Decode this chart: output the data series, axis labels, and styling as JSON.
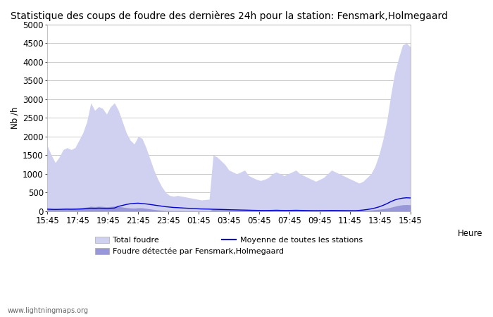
{
  "title": "Statistique des coups de foudre des dernières 24h pour la station: Fensmark,Holmegaard",
  "xlabel": "Heure",
  "ylabel": "Nb /h",
  "ylim": [
    0,
    5000
  ],
  "yticks": [
    0,
    500,
    1000,
    1500,
    2000,
    2500,
    3000,
    3500,
    4000,
    4500,
    5000
  ],
  "xtick_labels": [
    "15:45",
    "17:45",
    "19:45",
    "21:45",
    "23:45",
    "01:45",
    "03:45",
    "05:45",
    "07:45",
    "09:45",
    "11:45",
    "13:45",
    "15:45"
  ],
  "watermark": "www.lightningmaps.org",
  "legend": [
    {
      "label": "Total foudre",
      "color": "#c8c8f0",
      "type": "fill"
    },
    {
      "label": "Moyenne de toutes les stations",
      "color": "#0000cc",
      "type": "line"
    },
    {
      "label": "Foudre détectée par Fensmark,Holmegaard",
      "color": "#9090d0",
      "type": "fill"
    }
  ],
  "total_foudre": [
    1750,
    1500,
    1300,
    1450,
    1650,
    1700,
    1650,
    1700,
    1900,
    2100,
    2400,
    2900,
    2700,
    2800,
    2750,
    2600,
    2800,
    2900,
    2700,
    2400,
    2100,
    1900,
    1800,
    2000,
    1950,
    1700,
    1400,
    1100,
    850,
    650,
    500,
    420,
    400,
    420,
    400,
    380,
    360,
    340,
    320,
    300,
    310,
    320,
    1500,
    1450,
    1350,
    1250,
    1100,
    1050,
    1000,
    1050,
    1100,
    950,
    900,
    850,
    820,
    850,
    900,
    1000,
    1050,
    1000,
    950,
    1000,
    1050,
    1100,
    1000,
    950,
    900,
    850,
    800,
    850,
    900,
    1000,
    1100,
    1050,
    1000,
    950,
    900,
    850,
    800,
    750,
    800,
    900,
    1000,
    1200,
    1500,
    1900,
    2400,
    3100,
    3700,
    4100,
    4450,
    4500,
    4400
  ],
  "local_foudre": [
    80,
    65,
    55,
    60,
    70,
    75,
    70,
    75,
    85,
    95,
    110,
    130,
    120,
    130,
    125,
    115,
    125,
    135,
    125,
    110,
    95,
    85,
    80,
    90,
    88,
    75,
    60,
    45,
    33,
    22,
    15,
    12,
    10,
    12,
    11,
    10,
    9,
    9,
    8,
    8,
    9,
    9,
    55,
    52,
    48,
    44,
    40,
    37,
    35,
    37,
    39,
    34,
    32,
    29,
    28,
    29,
    32,
    35,
    38,
    35,
    33,
    35,
    38,
    42,
    38,
    35,
    32,
    29,
    27,
    29,
    30,
    34,
    38,
    36,
    34,
    32,
    30,
    28,
    26,
    22,
    24,
    28,
    32,
    40,
    50,
    63,
    80,
    103,
    130,
    155,
    170,
    175,
    170
  ],
  "moyenne": [
    55,
    50,
    48,
    50,
    53,
    55,
    53,
    55,
    58,
    62,
    70,
    80,
    75,
    82,
    78,
    72,
    78,
    85,
    130,
    155,
    180,
    200,
    210,
    215,
    205,
    195,
    180,
    165,
    150,
    135,
    120,
    110,
    100,
    95,
    88,
    82,
    76,
    70,
    65,
    60,
    58,
    56,
    52,
    50,
    47,
    44,
    40,
    37,
    35,
    32,
    30,
    27,
    24,
    22,
    20,
    19,
    20,
    22,
    25,
    22,
    20,
    20,
    22,
    24,
    22,
    20,
    18,
    16,
    15,
    16,
    17,
    18,
    20,
    19,
    18,
    17,
    16,
    15,
    14,
    22,
    32,
    45,
    62,
    85,
    115,
    155,
    200,
    255,
    300,
    330,
    350,
    360,
    355
  ],
  "bg_color": "#ffffff",
  "fill_total_color": "#d0d0f0",
  "fill_local_color": "#9898d8",
  "line_color": "#0000cc",
  "grid_color": "#c0c0c0",
  "title_fontsize": 10,
  "axis_fontsize": 8.5
}
